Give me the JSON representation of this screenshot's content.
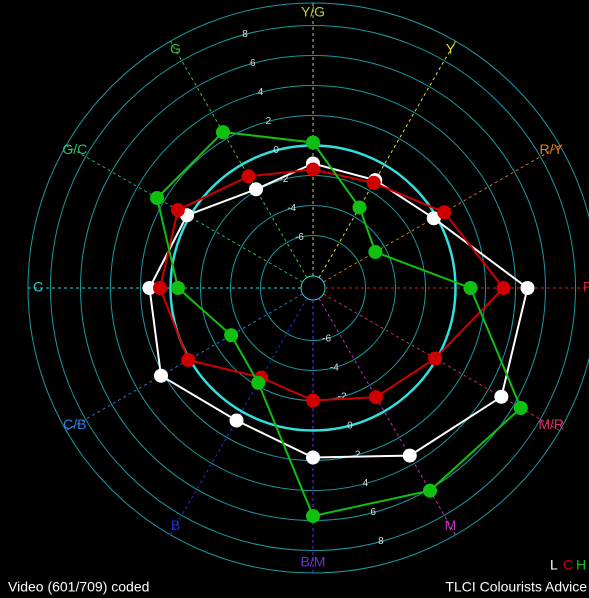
{
  "chart_data": {
    "type": "radar",
    "categories": [
      "R",
      "R/Y",
      "Y",
      "Y/G",
      "G",
      "G/C",
      "C",
      "C/B",
      "B",
      "B/M",
      "M",
      "M/R"
    ],
    "category_colors": [
      "#e02020",
      "#e08020",
      "#e0e030",
      "#b8d040",
      "#40c040",
      "#30c070",
      "#30d0d0",
      "#3080e0",
      "#2030d0",
      "#7030d0",
      "#c030c0",
      "#e03070"
    ],
    "rlim": [
      -9.5,
      9.5
    ],
    "rticks": [
      -6,
      -4,
      -2,
      0,
      2,
      4,
      6,
      8
    ],
    "highlight_ring": 0,
    "series": [
      {
        "name": "L",
        "color": "#ffffff",
        "values": [
          4.8,
          -0.2,
          -1.2,
          -1.2,
          -1.9,
          0.2,
          1.4,
          2.2,
          0.7,
          1.8,
          3.4,
          5.0
        ]
      },
      {
        "name": "C",
        "color": "#d00000",
        "values": [
          3.2,
          0.6,
          -1.4,
          -1.6,
          -0.9,
          0.9,
          0.7,
          0.1,
          -2.6,
          -2.0,
          -1.1,
          -0.1
        ]
      },
      {
        "name": "H",
        "color": "#10c010",
        "values": [
          1.0,
          -4.7,
          -3.3,
          0.2,
          2.5,
          2.5,
          -0.5,
          -3.2,
          -2.2,
          5.7,
          6.1,
          6.5
        ]
      }
    ]
  },
  "footer_left": "Video (601/709) coded",
  "footer_right": "TLCI Colourists Advice"
}
